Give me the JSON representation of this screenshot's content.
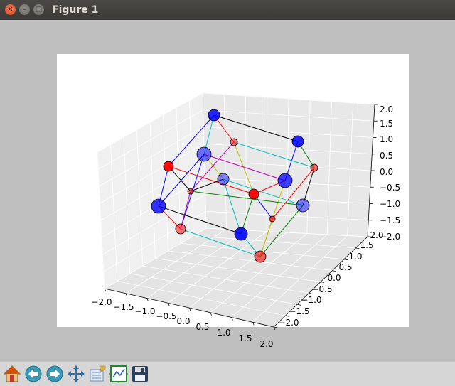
{
  "window": {
    "title": "Figure 1"
  },
  "toolbar": {
    "buttons": [
      {
        "name": "home",
        "icon": "home-icon"
      },
      {
        "name": "back",
        "icon": "back-arrow-icon"
      },
      {
        "name": "forward",
        "icon": "forward-arrow-icon"
      },
      {
        "name": "pan",
        "icon": "pan-move-icon"
      },
      {
        "name": "zoom",
        "icon": "zoom-rect-icon"
      },
      {
        "name": "subplots",
        "icon": "configure-subplots-icon"
      },
      {
        "name": "save",
        "icon": "save-floppy-icon"
      }
    ]
  },
  "chart_data": {
    "type": "scatter",
    "projection": "3d",
    "title": "",
    "xlabel": "",
    "ylabel": "",
    "zlabel": "",
    "xlim": [
      -2.0,
      2.0
    ],
    "ylim": [
      -2.0,
      2.0
    ],
    "zlim": [
      -2.0,
      2.0
    ],
    "grid": true,
    "x_ticks": [
      "−2.0",
      "−1.5",
      "−1.0",
      "−0.5",
      "0.0",
      "0.5",
      "1.0",
      "1.5",
      "2.0"
    ],
    "y_ticks": [
      "−2.0",
      "−1.5",
      "−1.0",
      "−0.5",
      "0.0",
      "0.5",
      "1.0",
      "1.5",
      "2.0"
    ],
    "z_ticks": [
      "−2.0",
      "−1.5",
      "−1.0",
      "−0.5",
      "0.0",
      "0.5",
      "1.0",
      "1.5",
      "2.0"
    ],
    "point_colors": {
      "blue": "#0000ff",
      "red": "#ff0000"
    },
    "edge_colors": [
      "#0000ff",
      "#ff0000",
      "#00bfbf",
      "#bfbf00",
      "#bf00bf",
      "#008000",
      "#000000"
    ]
  }
}
